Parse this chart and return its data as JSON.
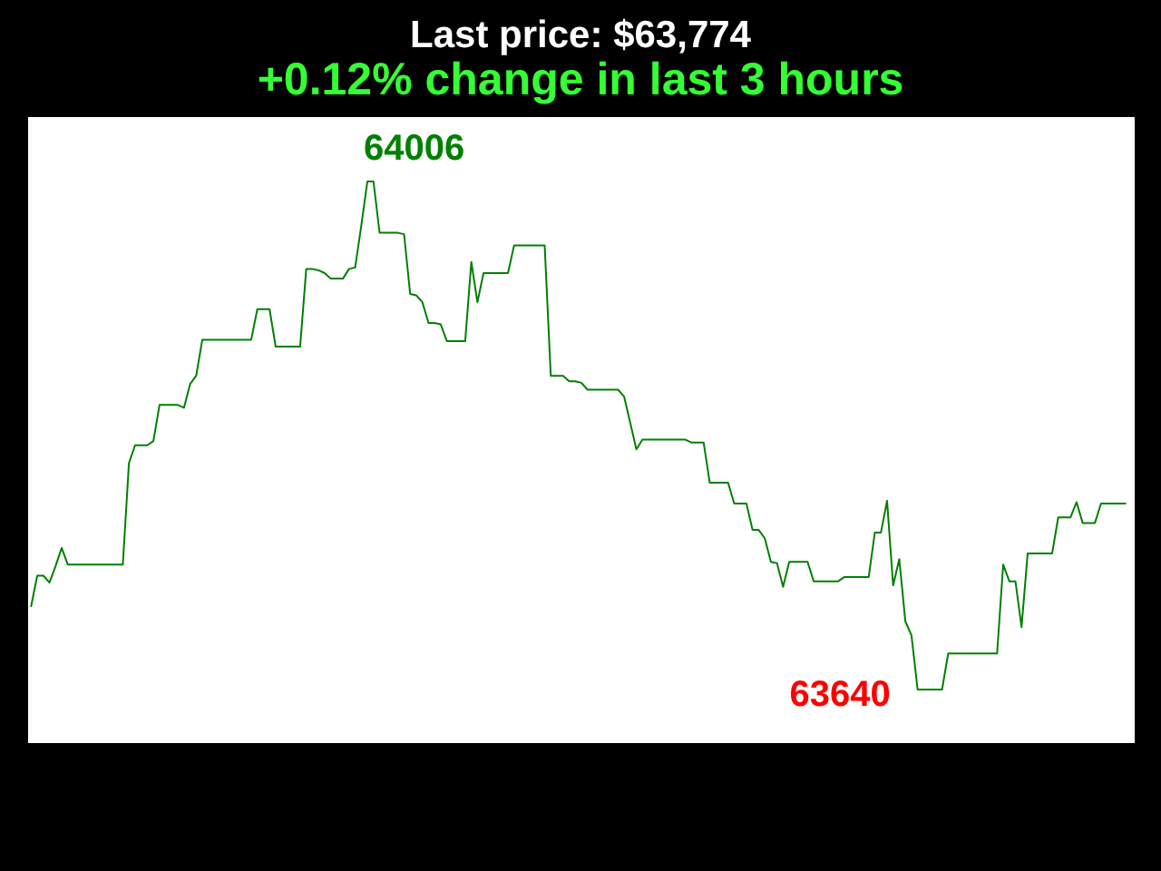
{
  "chart_data": {
    "type": "line",
    "title": "Last price: $63,774",
    "subtitle": "+0.12% change in last 3 hours",
    "categories": [
      null,
      null,
      null,
      null,
      null,
      null,
      null,
      null,
      null,
      null,
      null,
      null,
      null,
      null,
      null,
      null,
      null,
      null,
      null,
      null,
      null,
      null,
      null,
      null,
      null,
      null,
      null,
      null,
      null,
      null,
      null,
      null,
      null,
      null,
      null,
      null,
      null,
      null,
      null,
      null,
      null,
      null,
      null,
      null,
      null,
      null,
      null,
      null,
      null,
      null,
      null,
      null,
      null,
      null,
      null,
      null,
      null,
      null,
      null,
      null,
      null,
      null,
      null,
      null,
      null,
      null,
      null,
      null,
      null,
      null,
      null,
      null,
      null,
      null,
      null,
      null,
      null,
      null,
      null,
      null,
      null,
      null,
      null,
      null,
      null,
      null,
      null,
      null,
      null,
      null,
      null,
      null,
      null,
      null,
      null,
      null,
      null,
      null,
      null,
      null,
      null,
      null,
      null,
      null,
      null,
      null,
      null,
      null,
      null,
      null,
      null,
      null,
      null,
      null,
      null,
      null,
      null,
      null,
      null,
      null,
      null,
      null,
      null,
      null,
      null,
      null,
      null,
      null,
      null,
      null,
      null,
      null,
      null,
      null,
      null,
      null,
      null,
      null,
      null,
      null,
      null,
      null,
      null,
      null,
      null,
      null,
      null,
      null,
      null,
      null,
      null,
      null,
      null,
      null,
      null,
      null,
      null,
      null,
      null,
      null,
      null,
      null,
      null,
      null,
      null,
      null,
      null,
      null,
      null,
      null,
      null,
      null,
      null,
      null,
      null,
      null,
      null,
      null,
      null,
      null
    ],
    "series": [
      {
        "color": "#008000",
        "values": [
          63700,
          63722,
          63722,
          63717,
          63729,
          63742,
          63730,
          63730,
          63730,
          63730,
          63730,
          63730,
          63730,
          63730,
          63730,
          63730,
          63803,
          63816,
          63816,
          63816,
          63819,
          63845,
          63845,
          63845,
          63845,
          63843,
          63860,
          63866,
          63892,
          63892,
          63892,
          63892,
          63892,
          63892,
          63892,
          63892,
          63892,
          63914,
          63914,
          63914,
          63887,
          63887,
          63887,
          63887,
          63887,
          63943,
          63943,
          63942,
          63940,
          63936,
          63936,
          63936,
          63943,
          63944,
          63974,
          64006,
          64006,
          63969,
          63969,
          63969,
          63969,
          63968,
          63925,
          63924,
          63919,
          63904,
          63904,
          63903,
          63891,
          63891,
          63891,
          63891,
          63948,
          63919,
          63940,
          63940,
          63940,
          63940,
          63940,
          63960,
          63960,
          63960,
          63960,
          63960,
          63960,
          63866,
          63866,
          63866,
          63862,
          63862,
          63861,
          63856,
          63856,
          63856,
          63856,
          63856,
          63856,
          63851,
          63832,
          63813,
          63820,
          63820,
          63820,
          63820,
          63820,
          63820,
          63820,
          63820,
          63818,
          63818,
          63818,
          63789,
          63789,
          63789,
          63789,
          63774,
          63774,
          63774,
          63755,
          63755,
          63749,
          63732,
          63731,
          63714,
          63732,
          63732,
          63732,
          63732,
          63718,
          63718,
          63718,
          63718,
          63718,
          63721,
          63721,
          63721,
          63721,
          63721,
          63753,
          63753,
          63776,
          63715,
          63734,
          63689,
          63679,
          63640,
          63640,
          63640,
          63640,
          63640,
          63666,
          63666,
          63666,
          63666,
          63666,
          63666,
          63666,
          63666,
          63666,
          63730,
          63718,
          63718,
          63685,
          63738,
          63738,
          63738,
          63738,
          63738,
          63764,
          63764,
          63764,
          63775,
          63760,
          63760,
          63760,
          63774,
          63774,
          63774,
          63774,
          63774
        ],
        "value_labels": [
          null,
          null,
          null,
          null,
          null,
          null,
          null,
          null,
          null,
          null,
          null,
          null,
          null,
          null,
          null,
          null,
          null,
          null,
          null,
          null,
          null,
          null,
          null,
          null,
          null,
          null,
          null,
          null,
          null,
          null,
          null,
          null,
          null,
          null,
          null,
          null,
          null,
          null,
          null,
          null,
          null,
          null,
          null,
          null,
          null,
          null,
          null,
          null,
          null,
          null,
          null,
          null,
          null,
          null,
          null,
          "64006",
          null,
          null,
          null,
          null,
          null,
          null,
          null,
          null,
          null,
          null,
          null,
          null,
          null,
          null,
          null,
          null,
          null,
          null,
          null,
          null,
          null,
          null,
          null,
          null,
          null,
          null,
          null,
          null,
          null,
          null,
          null,
          null,
          null,
          null,
          null,
          null,
          null,
          null,
          null,
          null,
          null,
          null,
          null,
          null,
          null,
          null,
          null,
          null,
          null,
          null,
          null,
          null,
          null,
          null,
          null,
          null,
          null,
          null,
          null,
          null,
          null,
          null,
          null,
          null,
          null,
          null,
          null,
          null,
          null,
          null,
          null,
          null,
          null,
          null,
          null,
          null,
          null,
          null,
          null,
          null,
          null,
          null,
          null,
          null,
          null,
          null,
          null,
          null,
          null,
          "63640",
          null,
          null,
          null,
          null,
          null,
          null,
          null,
          null,
          null,
          null,
          null,
          null,
          null,
          null,
          null,
          null,
          null,
          null,
          null,
          null,
          null,
          null,
          null,
          null,
          null,
          null,
          null,
          null,
          null,
          null,
          null,
          null,
          null,
          null
        ]
      }
    ],
    "tick_labels": false
  }
}
